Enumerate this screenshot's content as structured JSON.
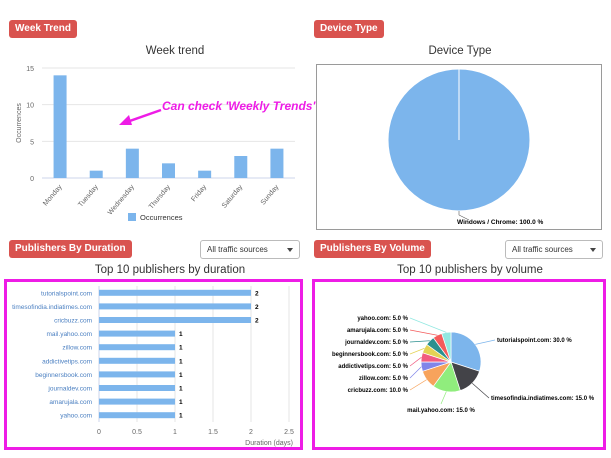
{
  "sections": {
    "week_trend": "Week Trend",
    "device_type": "Device Type",
    "by_duration": "Publishers By Duration",
    "by_volume": "Publishers By Volume"
  },
  "filters": {
    "duration_value": "All traffic sources",
    "volume_value": "All traffic sources"
  },
  "annotation": "Can check 'Weekly Trends'",
  "colors": {
    "badge": "#d9534f",
    "bar": "#7cb5ec",
    "highlight": "#ee1ce6",
    "annotation": "#ee1ce6"
  },
  "chart_data": [
    {
      "type": "bar",
      "title": "Week trend",
      "categories": [
        "Monday",
        "Tuesday",
        "Wednesday",
        "Thursday",
        "Friday",
        "Saturday",
        "Sunday"
      ],
      "series": [
        {
          "name": "Occurrences",
          "values": [
            14,
            1,
            4,
            2,
            1,
            3,
            4
          ]
        }
      ],
      "ylabel": "Occurrences",
      "ylim": [
        0,
        15
      ],
      "yticks": [
        "0",
        "5",
        "10",
        "15"
      ],
      "legend": "bottom"
    },
    {
      "type": "pie",
      "title": "Device Type",
      "slices": [
        {
          "label": "Windows / Chrome: 100.0 %",
          "value": 100
        }
      ]
    },
    {
      "type": "bar",
      "orientation": "horizontal",
      "title": "Top 10 publishers by duration",
      "categories": [
        "tutorialspoint.com",
        "timesofindia.indiatimes.com",
        "cricbuzz.com",
        "mail.yahoo.com",
        "zillow.com",
        "addictivetips.com",
        "beginnersbook.com",
        "journaldev.com",
        "amarujala.com",
        "yahoo.com"
      ],
      "values": [
        2,
        2,
        2,
        1,
        1,
        1,
        1,
        1,
        1,
        1
      ],
      "value_labels": [
        "2",
        "2",
        "2",
        "1",
        "1",
        "1",
        "1",
        "1",
        "1",
        "1"
      ],
      "xlabel": "Duration (days)",
      "xlim": [
        0,
        2.5
      ],
      "xticks": [
        "0",
        "0.5",
        "1",
        "1.5",
        "2",
        "2.5"
      ]
    },
    {
      "type": "pie",
      "title": "Top 10 publishers by volume",
      "slices": [
        {
          "label": "tutorialspoint.com: 30.0 %",
          "value": 30,
          "color": "#7cb5ec"
        },
        {
          "label": "timesofindia.indiatimes.com: 15.0 %",
          "value": 15,
          "color": "#434348"
        },
        {
          "label": "mail.yahoo.com: 15.0 %",
          "value": 15,
          "color": "#90ed7d"
        },
        {
          "label": "cricbuzz.com: 10.0 %",
          "value": 10,
          "color": "#f7a35c"
        },
        {
          "label": "zillow.com: 5.0 %",
          "value": 5,
          "color": "#8085e9"
        },
        {
          "label": "addictivetips.com: 5.0 %",
          "value": 5,
          "color": "#f15c80"
        },
        {
          "label": "beginnersbook.com: 5.0 %",
          "value": 5,
          "color": "#e4d354"
        },
        {
          "label": "journaldev.com: 5.0 %",
          "value": 5,
          "color": "#2b908f"
        },
        {
          "label": "amarujala.com: 5.0 %",
          "value": 5,
          "color": "#f45b5b"
        },
        {
          "label": "yahoo.com: 5.0 %",
          "value": 5,
          "color": "#91e8e1"
        }
      ]
    }
  ]
}
